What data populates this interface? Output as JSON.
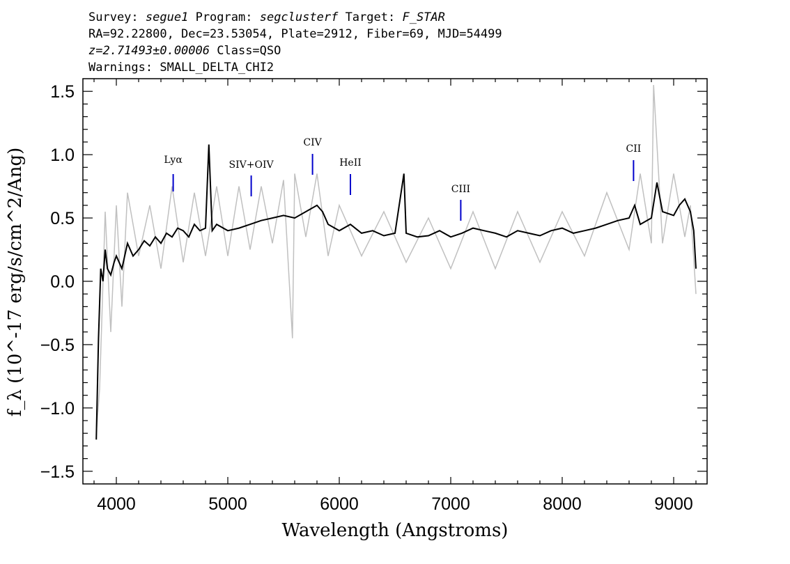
{
  "header": {
    "line1": {
      "survey_label": "Survey:",
      "survey": "segue1",
      "program_label": "Program:",
      "program": "segclusterf",
      "target_label": "Target:",
      "target": "F_STAR"
    },
    "line2": "RA=92.22800, Dec=23.53054, Plate=2912, Fiber=69, MJD=54499",
    "line3": {
      "redshift": "z=2.71493±0.00006",
      "class": "Class=QSO"
    },
    "line4": "Warnings: SMALL_DELTA_CHI2"
  },
  "chart_data": {
    "type": "line",
    "xlabel": "Wavelength (Angstroms)",
    "ylabel": "f_λ (10^-17 erg/s/cm^2/Ang)",
    "xlim": [
      3700,
      9300
    ],
    "ylim": [
      -1.6,
      1.6
    ],
    "x_ticks": [
      4000,
      5000,
      6000,
      7000,
      8000,
      9000
    ],
    "y_ticks": [
      -1.5,
      -1.0,
      -0.5,
      0.0,
      0.5,
      1.0,
      1.5
    ],
    "x_tick_labels": [
      "4000",
      "5000",
      "6000",
      "7000",
      "8000",
      "9000"
    ],
    "y_tick_labels": [
      "−1.5",
      "−1.0",
      "−0.5",
      "0.0",
      "0.5",
      "1.0",
      "1.5"
    ],
    "series": [
      {
        "color": "#000000",
        "x": [
          3820,
          3840,
          3860,
          3880,
          3900,
          3920,
          3950,
          3980,
          4000,
          4050,
          4100,
          4150,
          4200,
          4250,
          4300,
          4350,
          4400,
          4450,
          4500,
          4550,
          4600,
          4650,
          4700,
          4750,
          4800,
          4830,
          4860,
          4900,
          5000,
          5100,
          5200,
          5300,
          5400,
          5500,
          5600,
          5700,
          5800,
          5850,
          5900,
          6000,
          6100,
          6200,
          6300,
          6400,
          6500,
          6580,
          6600,
          6700,
          6800,
          6900,
          7000,
          7100,
          7200,
          7300,
          7400,
          7500,
          7600,
          7700,
          7800,
          7900,
          8000,
          8100,
          8200,
          8300,
          8400,
          8500,
          8600,
          8650,
          8700,
          8800,
          8850,
          8900,
          9000,
          9050,
          9100,
          9150,
          9180,
          9200
        ],
        "y": [
          -1.25,
          -0.45,
          0.1,
          0.0,
          0.25,
          0.1,
          0.05,
          0.15,
          0.2,
          0.1,
          0.3,
          0.2,
          0.25,
          0.32,
          0.28,
          0.35,
          0.3,
          0.38,
          0.35,
          0.42,
          0.4,
          0.35,
          0.45,
          0.4,
          0.42,
          1.08,
          0.4,
          0.45,
          0.4,
          0.42,
          0.45,
          0.48,
          0.5,
          0.52,
          0.5,
          0.55,
          0.6,
          0.55,
          0.45,
          0.4,
          0.45,
          0.38,
          0.4,
          0.36,
          0.38,
          0.85,
          0.38,
          0.35,
          0.36,
          0.4,
          0.35,
          0.38,
          0.42,
          0.4,
          0.38,
          0.35,
          0.4,
          0.38,
          0.36,
          0.4,
          0.42,
          0.38,
          0.4,
          0.42,
          0.45,
          0.48,
          0.5,
          0.6,
          0.45,
          0.5,
          0.78,
          0.55,
          0.52,
          0.6,
          0.65,
          0.55,
          0.4,
          0.1
        ]
      },
      {
        "color": "#c0c0c0",
        "x": [
          3820,
          3850,
          3900,
          3950,
          4000,
          4050,
          4100,
          4200,
          4300,
          4400,
          4500,
          4600,
          4700,
          4800,
          4900,
          5000,
          5100,
          5200,
          5300,
          5400,
          5500,
          5580,
          5600,
          5700,
          5800,
          5900,
          6000,
          6200,
          6400,
          6600,
          6800,
          7000,
          7200,
          7400,
          7600,
          7800,
          8000,
          8200,
          8400,
          8600,
          8700,
          8800,
          8820,
          8900,
          9000,
          9100,
          9150,
          9200
        ],
        "y": [
          -1.2,
          -0.85,
          0.55,
          -0.4,
          0.6,
          -0.2,
          0.7,
          0.2,
          0.6,
          0.1,
          0.75,
          0.15,
          0.7,
          0.2,
          0.75,
          0.2,
          0.75,
          0.25,
          0.75,
          0.3,
          0.8,
          -0.45,
          0.85,
          0.35,
          0.85,
          0.2,
          0.6,
          0.2,
          0.55,
          0.15,
          0.5,
          0.1,
          0.55,
          0.1,
          0.55,
          0.15,
          0.55,
          0.2,
          0.7,
          0.25,
          0.85,
          0.3,
          1.55,
          0.3,
          0.85,
          0.35,
          0.6,
          -0.1
        ]
      }
    ],
    "line_markers": [
      {
        "name": "Lyα",
        "x": 4510
      },
      {
        "name": "SIV+OIV",
        "x": 5210
      },
      {
        "name": "CIV",
        "x": 5760
      },
      {
        "name": "HeII",
        "x": 6100
      },
      {
        "name": "CIII",
        "x": 7090
      },
      {
        "name": "CII",
        "x": 8640
      }
    ],
    "colors": {
      "flux": "#000000",
      "noise": "#c0c0c0",
      "line_markers": "#0000cc"
    },
    "grid": false
  }
}
